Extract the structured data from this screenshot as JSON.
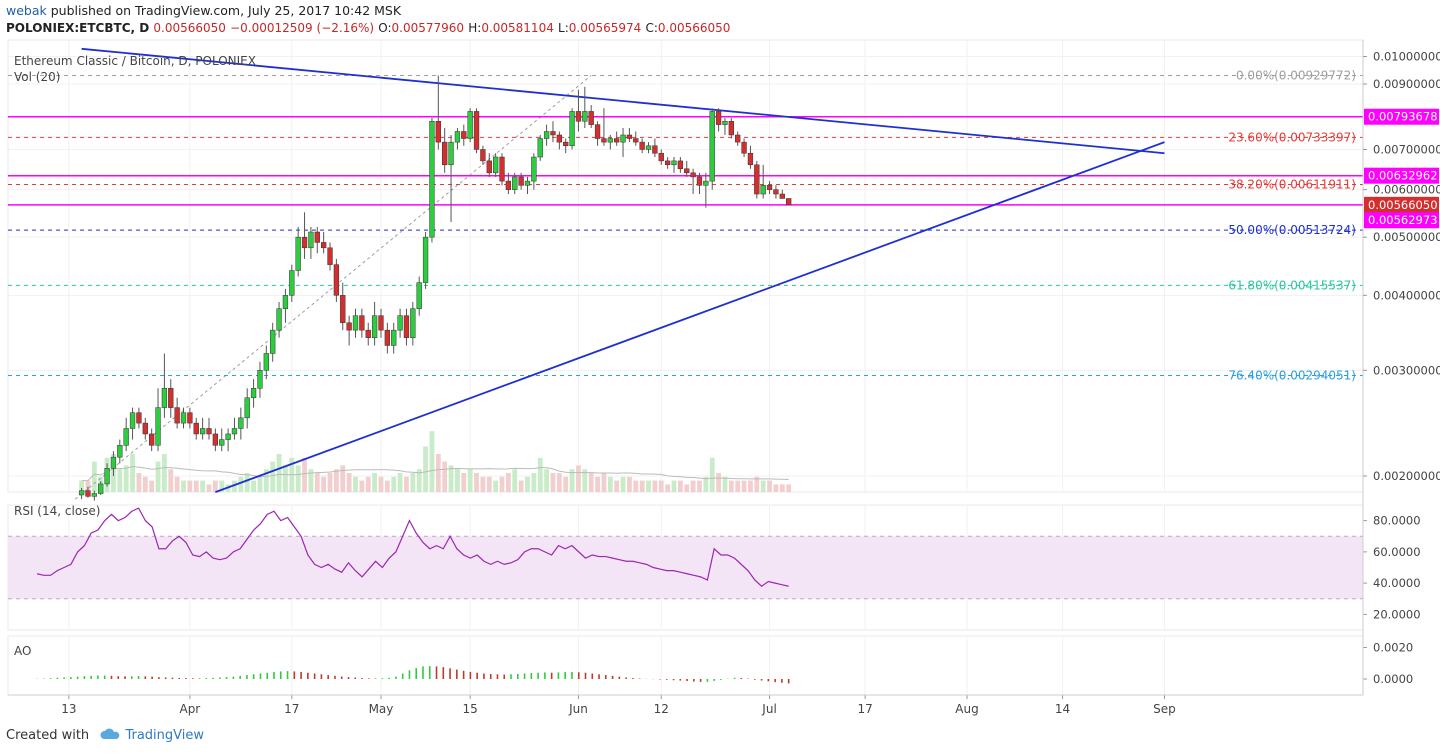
{
  "header": {
    "author": "webak",
    "published_text": " published on TradingView.com, July 25, 2017 10:42 MSK",
    "symbol_line": "POLONIEX:ETCBTC, D",
    "last": "0.00566050",
    "change": "−0.00012509 (−2.16%)",
    "o_label": "O:",
    "o": "0.00577960",
    "h_label": "H:",
    "h": "0.00581104",
    "l_label": "L:",
    "l": "0.00565974",
    "c_label": "C:",
    "c": "0.00566050"
  },
  "legend": {
    "title": "Ethereum Classic / Bitcoin, D, POLONIEX",
    "volume": "Vol (20)",
    "rsi": "RSI (14, close)",
    "ao": "AO"
  },
  "footer": {
    "created": "Created with",
    "brand": "TradingView"
  },
  "colors": {
    "up": "#2ecc40",
    "down": "#d32f2f",
    "trend": "#1f2fd1",
    "magenta": "#ff00ff",
    "rsi": "#9c27b0",
    "rsi_band": "#f3e5f5"
  },
  "chart_data": [
    {
      "type": "candlestick",
      "title": "Ethereum Classic / Bitcoin, D, POLONIEX",
      "x_axis": {
        "ticks": [
          "13",
          "Apr",
          "17",
          "May",
          "15",
          "Jun",
          "12",
          "Jul",
          "17",
          "Aug",
          "14",
          "Sep"
        ]
      },
      "y_axis": {
        "ticks": [
          "0.01000000",
          "0.00900000",
          "0.00700000",
          "0.00600000",
          "0.00500000",
          "0.00400000",
          "0.00300000",
          "0.00200000"
        ],
        "scale": "log"
      },
      "price_labels": [
        {
          "text": "0.00793678",
          "style": "magenta"
        },
        {
          "text": "0.00632962",
          "style": "magenta"
        },
        {
          "text": "0.00566050",
          "style": "red"
        },
        {
          "text": "0.00562973",
          "style": "magenta"
        }
      ],
      "horizontal_levels": [
        0.00793678,
        0.00632962,
        0.0056605
      ],
      "fib_levels": [
        {
          "label": "0.00%(0.00929772)",
          "value": 0.00929772,
          "color": "#9e9e9e"
        },
        {
          "label": "23.60%(0.00733397)",
          "value": 0.00733397,
          "color": "#e53935"
        },
        {
          "label": "38.20%(0.00611911)",
          "value": 0.00611911,
          "color": "#e53935"
        },
        {
          "label": "50.00%(0.00513724)",
          "value": 0.00513724,
          "color": "#1f2fd1"
        },
        {
          "label": "61.80%(0.00415537)",
          "value": 0.00415537,
          "color": "#26c6a0"
        },
        {
          "label": "76.40%(0.00294051)",
          "value": 0.00294051,
          "color": "#29a0e0"
        }
      ],
      "trendlines": [
        {
          "name": "upper",
          "x1": "Mar 8",
          "y1": 0.0103,
          "x2": "Sep 1",
          "y2": 0.0069
        },
        {
          "name": "lower",
          "x1": "Mar 29",
          "y1": 0.00188,
          "x2": "Sep 1",
          "y2": 0.0072
        }
      ],
      "candles": [
        [
          0.00186,
          0.00191,
          0.00183,
          0.00189
        ],
        [
          0.00189,
          0.00192,
          0.00184,
          0.00185
        ],
        [
          0.00185,
          0.00189,
          0.00182,
          0.00187
        ],
        [
          0.00187,
          0.00196,
          0.00186,
          0.00194
        ],
        [
          0.00194,
          0.0021,
          0.00192,
          0.00206
        ],
        [
          0.00206,
          0.0022,
          0.002,
          0.00215
        ],
        [
          0.00215,
          0.0023,
          0.0021,
          0.00225
        ],
        [
          0.00225,
          0.0025,
          0.0022,
          0.0024
        ],
        [
          0.0024,
          0.0026,
          0.0023,
          0.00255
        ],
        [
          0.00255,
          0.0026,
          0.0024,
          0.00245
        ],
        [
          0.00245,
          0.0025,
          0.0023,
          0.00235
        ],
        [
          0.00235,
          0.0024,
          0.0022,
          0.00225
        ],
        [
          0.00225,
          0.0028,
          0.0022,
          0.0026
        ],
        [
          0.0026,
          0.0032,
          0.0025,
          0.0028
        ],
        [
          0.0028,
          0.0029,
          0.0025,
          0.0026
        ],
        [
          0.0026,
          0.0027,
          0.0024,
          0.00245
        ],
        [
          0.00245,
          0.0026,
          0.0024,
          0.00255
        ],
        [
          0.00255,
          0.0026,
          0.0024,
          0.00245
        ],
        [
          0.00245,
          0.0025,
          0.0023,
          0.00235
        ],
        [
          0.00235,
          0.0025,
          0.0023,
          0.0024
        ],
        [
          0.0024,
          0.0025,
          0.0023,
          0.00235
        ],
        [
          0.00235,
          0.0024,
          0.0022,
          0.00225
        ],
        [
          0.00225,
          0.0024,
          0.0022,
          0.0023
        ],
        [
          0.0023,
          0.0024,
          0.0022,
          0.00235
        ],
        [
          0.00235,
          0.0025,
          0.0023,
          0.0024
        ],
        [
          0.0024,
          0.0026,
          0.0023,
          0.0025
        ],
        [
          0.0025,
          0.0028,
          0.0024,
          0.0027
        ],
        [
          0.0027,
          0.0029,
          0.0026,
          0.0028
        ],
        [
          0.0028,
          0.0031,
          0.0027,
          0.003
        ],
        [
          0.003,
          0.0033,
          0.0029,
          0.0032
        ],
        [
          0.0032,
          0.0036,
          0.0031,
          0.0035
        ],
        [
          0.0035,
          0.0039,
          0.0034,
          0.0038
        ],
        [
          0.0038,
          0.0041,
          0.0036,
          0.004
        ],
        [
          0.004,
          0.0045,
          0.0039,
          0.0044
        ],
        [
          0.0044,
          0.0052,
          0.0043,
          0.005
        ],
        [
          0.005,
          0.0055,
          0.0046,
          0.0048
        ],
        [
          0.0048,
          0.0052,
          0.0046,
          0.0051
        ],
        [
          0.0051,
          0.0052,
          0.0047,
          0.0049
        ],
        [
          0.0049,
          0.0051,
          0.0047,
          0.0048
        ],
        [
          0.0048,
          0.0049,
          0.0044,
          0.0045
        ],
        [
          0.0045,
          0.0046,
          0.0039,
          0.004
        ],
        [
          0.004,
          0.0042,
          0.0035,
          0.0036
        ],
        [
          0.0036,
          0.0037,
          0.0033,
          0.0035
        ],
        [
          0.0035,
          0.0038,
          0.0034,
          0.0037
        ],
        [
          0.0037,
          0.0038,
          0.0034,
          0.0035
        ],
        [
          0.0035,
          0.0036,
          0.0033,
          0.0034
        ],
        [
          0.0034,
          0.0039,
          0.0033,
          0.0037
        ],
        [
          0.0037,
          0.0038,
          0.0034,
          0.0035
        ],
        [
          0.0035,
          0.0036,
          0.0032,
          0.0033
        ],
        [
          0.0033,
          0.0036,
          0.0032,
          0.0035
        ],
        [
          0.0035,
          0.0038,
          0.0034,
          0.0037
        ],
        [
          0.0037,
          0.0038,
          0.0033,
          0.0034
        ],
        [
          0.0034,
          0.0039,
          0.0033,
          0.0038
        ],
        [
          0.0038,
          0.0043,
          0.0037,
          0.0042
        ],
        [
          0.0042,
          0.0051,
          0.0041,
          0.005
        ],
        [
          0.005,
          0.0079,
          0.0049,
          0.0078
        ],
        [
          0.0078,
          0.0093,
          0.007,
          0.0072
        ],
        [
          0.0072,
          0.0076,
          0.0064,
          0.0066
        ],
        [
          0.0066,
          0.0074,
          0.0053,
          0.0072
        ],
        [
          0.0072,
          0.0076,
          0.007,
          0.0075
        ],
        [
          0.0075,
          0.0077,
          0.0071,
          0.0073
        ],
        [
          0.0073,
          0.0082,
          0.0072,
          0.0081
        ],
        [
          0.0081,
          0.0082,
          0.0069,
          0.007
        ],
        [
          0.007,
          0.0071,
          0.0066,
          0.0067
        ],
        [
          0.0067,
          0.0069,
          0.0063,
          0.0064
        ],
        [
          0.0064,
          0.0069,
          0.0063,
          0.0068
        ],
        [
          0.0068,
          0.0069,
          0.0061,
          0.0062
        ],
        [
          0.0062,
          0.0064,
          0.0059,
          0.006
        ],
        [
          0.006,
          0.0064,
          0.0059,
          0.0063
        ],
        [
          0.0063,
          0.0064,
          0.006,
          0.0061
        ],
        [
          0.0061,
          0.0063,
          0.0059,
          0.0062
        ],
        [
          0.0062,
          0.0069,
          0.006,
          0.0068
        ],
        [
          0.0068,
          0.0074,
          0.0067,
          0.0073
        ],
        [
          0.0073,
          0.0077,
          0.0071,
          0.0075
        ],
        [
          0.0075,
          0.0078,
          0.0072,
          0.0074
        ],
        [
          0.0074,
          0.0075,
          0.007,
          0.0072
        ],
        [
          0.0072,
          0.0073,
          0.0069,
          0.0071
        ],
        [
          0.0071,
          0.0082,
          0.007,
          0.0081
        ],
        [
          0.0081,
          0.0088,
          0.0075,
          0.0078
        ],
        [
          0.0078,
          0.0089,
          0.0076,
          0.0081
        ],
        [
          0.0081,
          0.0083,
          0.0076,
          0.0077
        ],
        [
          0.0077,
          0.0078,
          0.0071,
          0.0073
        ],
        [
          0.0073,
          0.0082,
          0.0071,
          0.0072
        ],
        [
          0.0072,
          0.0074,
          0.007,
          0.0073
        ],
        [
          0.0073,
          0.0075,
          0.0071,
          0.0072
        ],
        [
          0.0072,
          0.0076,
          0.0068,
          0.0074
        ],
        [
          0.0074,
          0.0076,
          0.0072,
          0.0073
        ],
        [
          0.0073,
          0.0075,
          0.0071,
          0.0072
        ],
        [
          0.0072,
          0.0073,
          0.0069,
          0.007
        ],
        [
          0.007,
          0.0072,
          0.0069,
          0.0071
        ],
        [
          0.0071,
          0.0073,
          0.0068,
          0.0069
        ],
        [
          0.0069,
          0.007,
          0.0066,
          0.0067
        ],
        [
          0.0067,
          0.0068,
          0.0065,
          0.0066
        ],
        [
          0.0066,
          0.0068,
          0.0064,
          0.0067
        ],
        [
          0.0067,
          0.0068,
          0.0064,
          0.0065
        ],
        [
          0.0065,
          0.0067,
          0.0063,
          0.0064
        ],
        [
          0.0064,
          0.0065,
          0.0059,
          0.0063
        ],
        [
          0.0063,
          0.0064,
          0.0059,
          0.0061
        ],
        [
          0.0061,
          0.0064,
          0.0056,
          0.0062
        ],
        [
          0.0062,
          0.0082,
          0.006,
          0.0081
        ],
        [
          0.0081,
          0.0082,
          0.0075,
          0.0077
        ],
        [
          0.0077,
          0.0079,
          0.0074,
          0.0078
        ],
        [
          0.0078,
          0.0079,
          0.0073,
          0.0074
        ],
        [
          0.0074,
          0.0075,
          0.0071,
          0.0072
        ],
        [
          0.0072,
          0.0073,
          0.0068,
          0.0069
        ],
        [
          0.0069,
          0.0071,
          0.0065,
          0.0066
        ],
        [
          0.0066,
          0.0067,
          0.0058,
          0.0059
        ],
        [
          0.0059,
          0.0066,
          0.0058,
          0.0061
        ],
        [
          0.0061,
          0.0062,
          0.0059,
          0.006
        ],
        [
          0.006,
          0.0061,
          0.0058,
          0.0059
        ],
        [
          0.0059,
          0.006,
          0.0058,
          0.0058
        ],
        [
          0.0058,
          0.0058,
          0.00566,
          0.00566
        ]
      ],
      "volume": [
        0.3,
        0.3,
        0.8,
        0.4,
        0.9,
        1.0,
        0.6,
        0.7,
        1.0,
        0.5,
        0.4,
        0.3,
        0.8,
        1.0,
        0.6,
        0.4,
        0.3,
        0.3,
        0.3,
        0.3,
        0.2,
        0.3,
        0.3,
        0.2,
        0.3,
        0.4,
        0.5,
        0.3,
        0.4,
        0.6,
        0.8,
        1.0,
        0.7,
        0.9,
        0.7,
        0.9,
        0.6,
        0.5,
        0.4,
        0.5,
        0.6,
        0.7,
        0.5,
        0.4,
        0.3,
        0.4,
        0.5,
        0.4,
        0.3,
        0.4,
        0.5,
        0.4,
        0.5,
        0.6,
        1.2,
        1.6,
        1.0,
        0.8,
        0.7,
        0.6,
        0.5,
        0.6,
        0.5,
        0.4,
        0.4,
        0.3,
        0.4,
        0.5,
        0.6,
        0.3,
        0.4,
        0.5,
        0.9,
        0.6,
        0.5,
        0.5,
        0.4,
        0.6,
        0.7,
        0.6,
        0.5,
        0.4,
        0.5,
        0.4,
        0.3,
        0.4,
        0.4,
        0.3,
        0.3,
        0.3,
        0.3,
        0.3,
        0.2,
        0.3,
        0.3,
        0.2,
        0.3,
        0.3,
        0.4,
        0.9,
        0.5,
        0.4,
        0.3,
        0.3,
        0.3,
        0.3,
        0.4,
        0.3,
        0.3,
        0.2,
        0.2,
        0.2
      ]
    },
    {
      "type": "line",
      "title": "RSI (14, close)",
      "y_axis": {
        "ticks": [
          "80.0000",
          "60.0000",
          "40.0000",
          "20.0000"
        ],
        "range": [
          10,
          90
        ]
      },
      "band": [
        30,
        70
      ],
      "values": [
        46,
        45,
        45,
        48,
        50,
        52,
        60,
        64,
        72,
        74,
        80,
        84,
        80,
        82,
        86,
        88,
        80,
        76,
        62,
        62,
        67,
        70,
        66,
        58,
        57,
        60,
        56,
        55,
        56,
        60,
        62,
        68,
        74,
        78,
        84,
        86,
        80,
        82,
        76,
        70,
        58,
        52,
        50,
        52,
        49,
        47,
        53,
        48,
        44,
        49,
        54,
        50,
        56,
        60,
        70,
        80,
        72,
        66,
        62,
        64,
        62,
        70,
        62,
        58,
        56,
        58,
        54,
        52,
        54,
        52,
        53,
        55,
        60,
        62,
        62,
        60,
        58,
        64,
        62,
        64,
        60,
        56,
        58,
        57,
        57,
        56,
        55,
        54,
        54,
        53,
        52,
        50,
        49,
        48,
        48,
        47,
        46,
        45,
        44,
        42,
        62,
        58,
        58,
        56,
        52,
        48,
        42,
        38,
        41,
        40,
        39,
        38
      ]
    },
    {
      "type": "bar",
      "title": "AO",
      "y_axis": {
        "ticks": [
          "0.0020",
          "0.0000"
        ]
      },
      "values": [
        2e-05,
        3e-05,
        5e-05,
        8e-05,
        0.0001,
        0.00012,
        0.00015,
        0.00018,
        0.0002,
        0.00022,
        0.00022,
        0.0002,
        0.00018,
        0.00017,
        0.00018,
        0.00019,
        0.00017,
        0.00015,
        0.00012,
        0.0001,
        8e-05,
        7e-05,
        6e-05,
        5e-05,
        5e-05,
        6e-05,
        8e-05,
        0.0001,
        0.00012,
        0.00015,
        0.0002,
        0.00025,
        0.0003,
        0.00035,
        0.0004,
        0.00045,
        0.00048,
        0.0005,
        0.00048,
        0.00045,
        0.0004,
        0.00035,
        0.0003,
        0.00025,
        0.0002,
        0.00016,
        0.00012,
        9e-05,
        6e-05,
        4e-05,
        4e-05,
        5e-05,
        8e-05,
        0.00015,
        0.00035,
        0.00055,
        0.0007,
        0.0008,
        0.00082,
        0.0008,
        0.00075,
        0.00068,
        0.0006,
        0.00052,
        0.00045,
        0.0004,
        0.00035,
        0.00032,
        0.0003,
        0.00028,
        0.0003,
        0.00032,
        0.00035,
        0.00038,
        0.0004,
        0.00042,
        0.0004,
        0.00042,
        0.00044,
        0.00045,
        0.00043,
        0.0004,
        0.00035,
        0.0003,
        0.00025,
        0.0002,
        0.00015,
        0.0001,
        6e-05,
        3e-05,
        1e-05,
        -1e-05,
        -3e-05,
        -5e-05,
        -8e-05,
        -0.0001,
        -0.00013,
        -0.00016,
        -0.00018,
        -0.00018,
        -0.00012,
        -6e-05,
        2e-05,
        8e-05,
        6e-05,
        3e-05,
        -5e-05,
        -0.0001,
        -0.00015,
        -0.0002,
        -0.00024,
        -0.00028
      ]
    }
  ]
}
